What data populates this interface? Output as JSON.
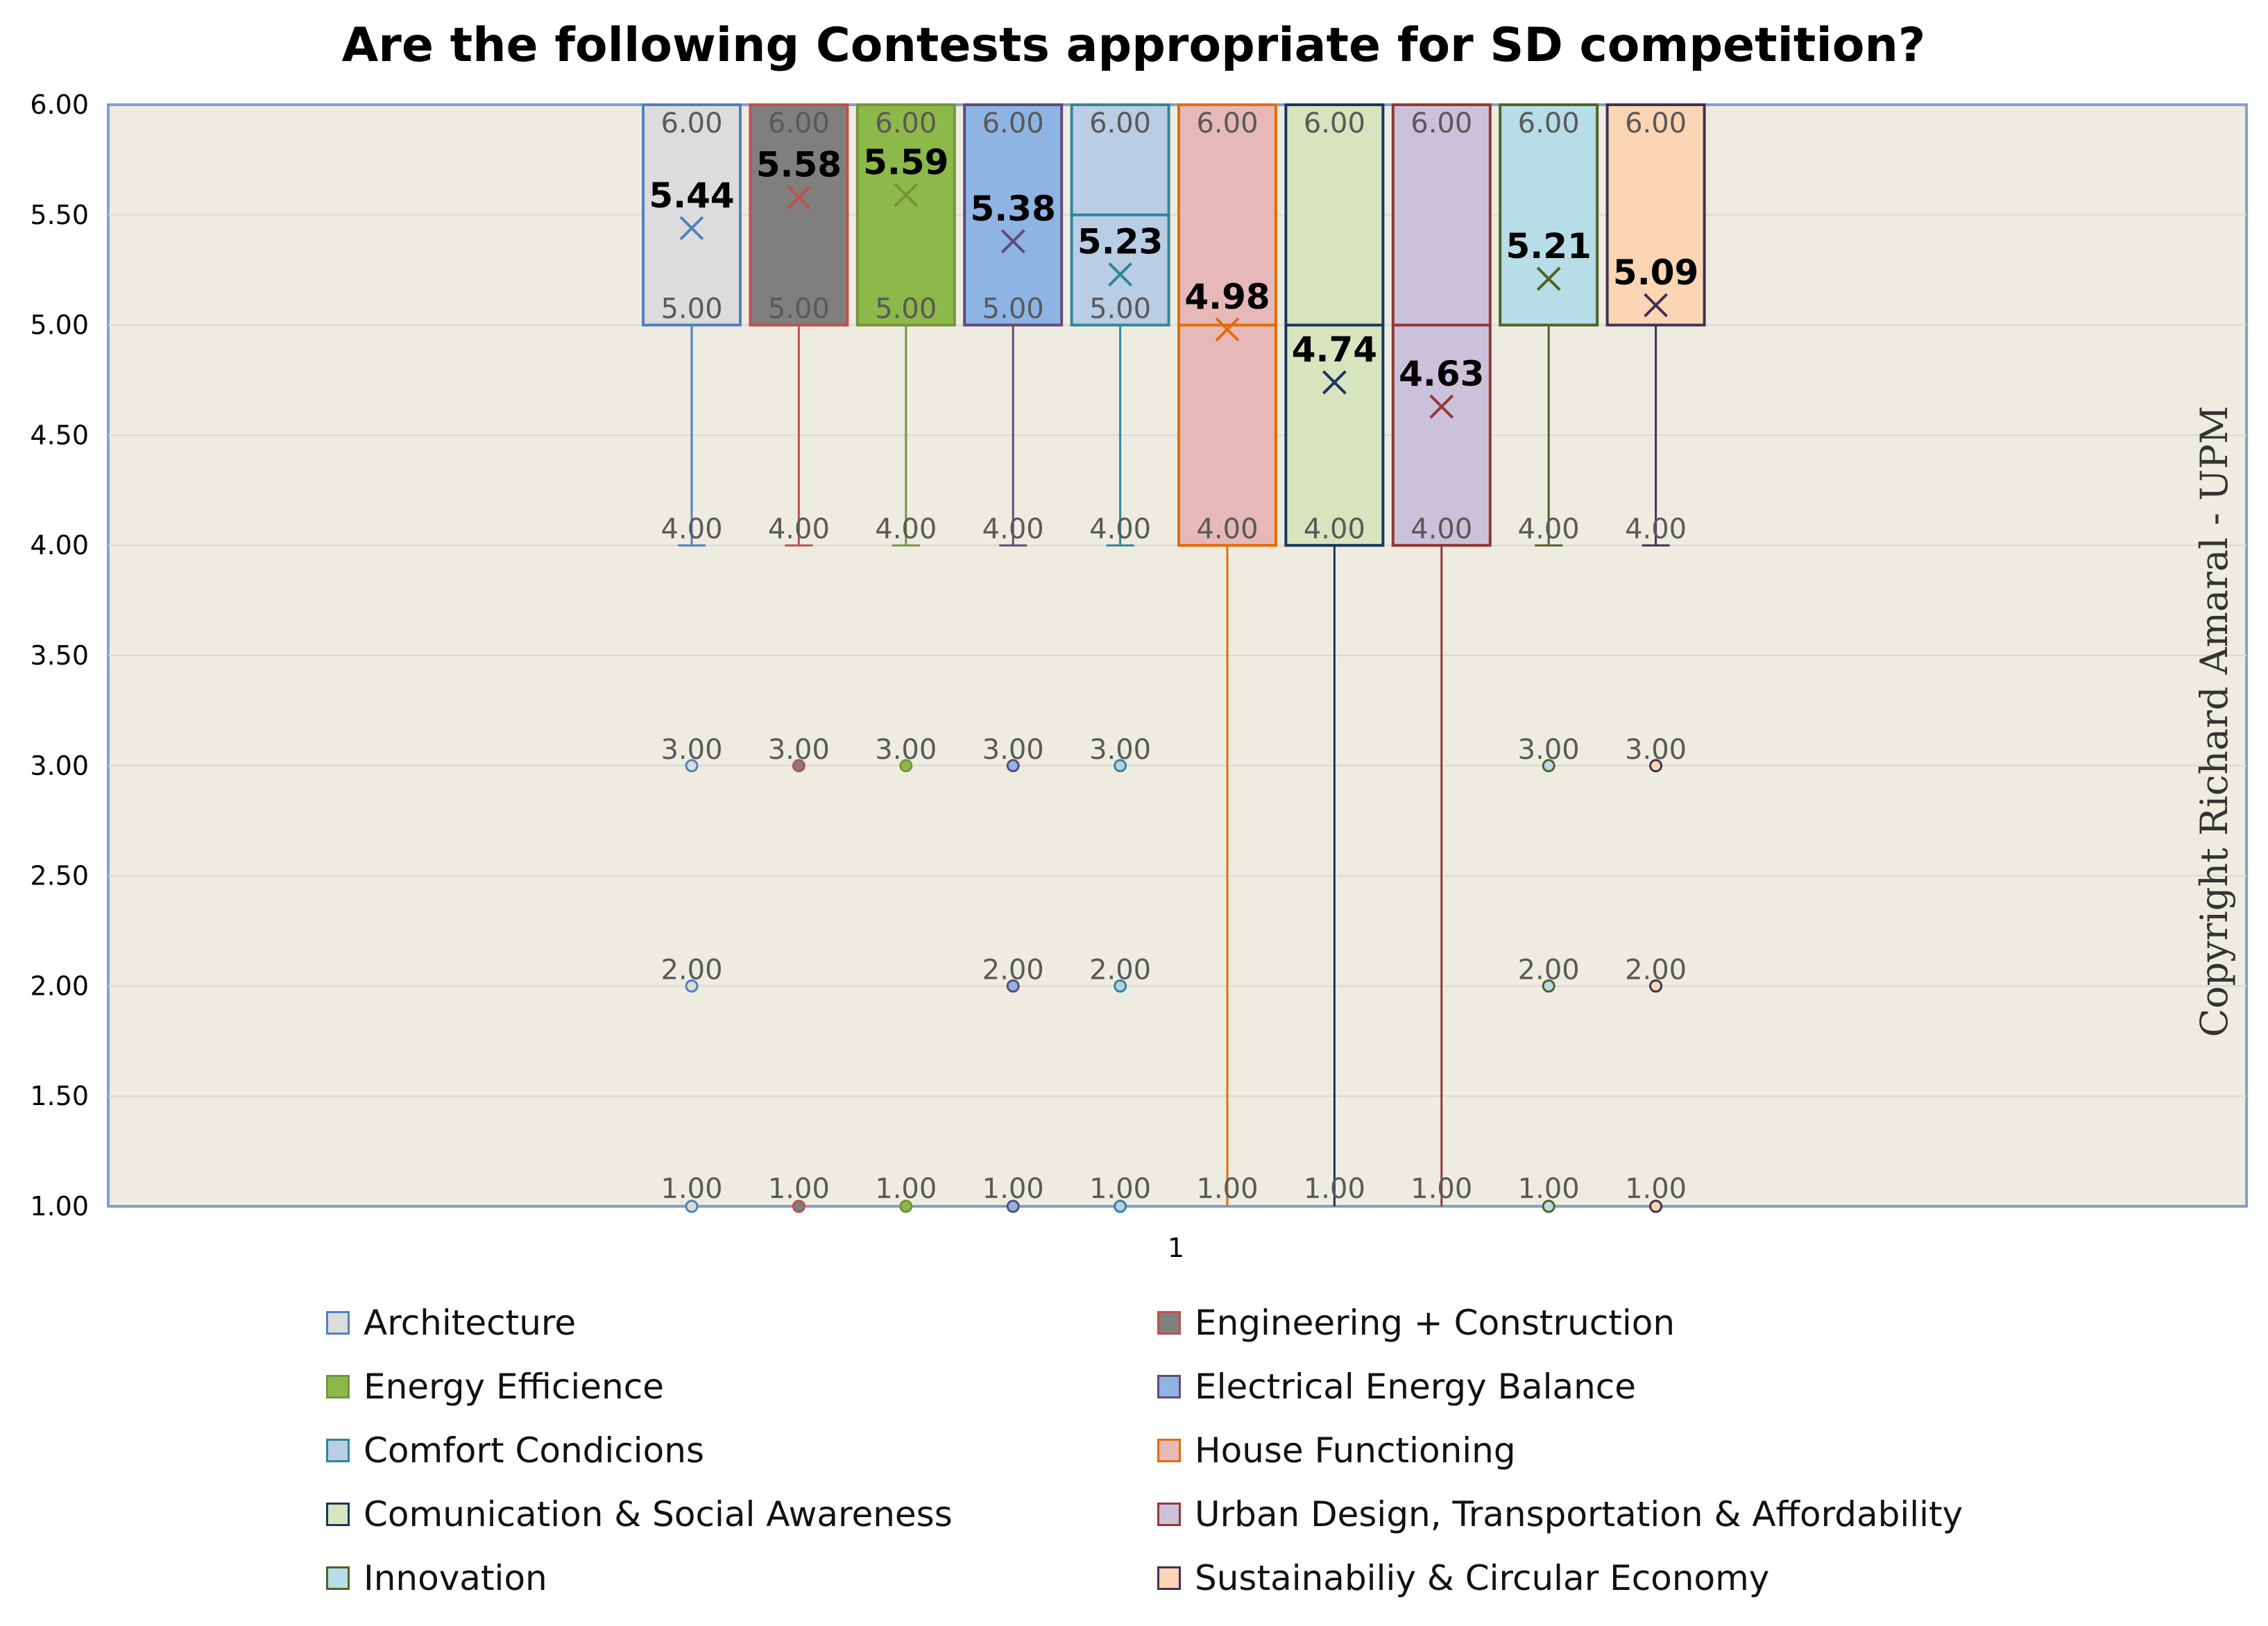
{
  "chart_data": {
    "type": "box",
    "title": "Are the following Contests appropriate for SD competition?",
    "xlabel": "",
    "ylabel": "",
    "categories": [
      "1"
    ],
    "ylim": [
      1.0,
      6.0
    ],
    "yticks": [
      "1.00",
      "1.50",
      "2.00",
      "2.50",
      "3.00",
      "3.50",
      "4.00",
      "4.50",
      "5.00",
      "5.50",
      "6.00"
    ],
    "grid": true,
    "legend_position": "bottom",
    "series": [
      {
        "name": "Architecture",
        "fill": "#dcdcdc",
        "stroke": "#4f81bd",
        "max": 6,
        "q3": 6,
        "median": 5,
        "q1": 5,
        "whisker_low": 4,
        "mean": 5.44,
        "outliers": [
          3,
          2,
          1
        ],
        "labels": [
          "6.00",
          "5.00",
          "4.00",
          "3.00",
          "2.00",
          "1.00"
        ],
        "mean_label": "5.44"
      },
      {
        "name": "Engineering + Construction",
        "fill": "#7f7f7f",
        "stroke": "#c0504d",
        "max": 6,
        "q3": 6,
        "median": 5,
        "q1": 5,
        "whisker_low": 4,
        "mean": 5.58,
        "outliers": [
          3,
          1
        ],
        "labels": [
          "6.00",
          "5.00",
          "4.00",
          "3.00",
          "1.00"
        ],
        "mean_label": "5.58"
      },
      {
        "name": "Energy Efficience",
        "fill": "#8db84a",
        "stroke": "#77933c",
        "max": 6,
        "q3": 6,
        "median": 5,
        "q1": 5,
        "whisker_low": 4,
        "mean": 5.59,
        "outliers": [
          3,
          1
        ],
        "labels": [
          "6.00",
          "5.00",
          "4.00",
          "3.00",
          "1.00"
        ],
        "mean_label": "5.59"
      },
      {
        "name": "Electrical Energy Balance",
        "fill": "#8eb4e3",
        "stroke": "#604a7b",
        "max": 6,
        "q3": 6,
        "median": 5,
        "q1": 5,
        "whisker_low": 4,
        "mean": 5.38,
        "outliers": [
          3,
          2,
          1
        ],
        "labels": [
          "6.00",
          "5.00",
          "4.00",
          "3.00",
          "2.00",
          "1.00"
        ],
        "mean_label": "5.38"
      },
      {
        "name": "Comfort Condicions",
        "fill": "#b9cde5",
        "stroke": "#31859c",
        "max": 6,
        "q3": 6,
        "median": 5.5,
        "q1": 5,
        "whisker_low": 4,
        "mean": 5.23,
        "outliers": [
          3,
          2,
          1
        ],
        "labels": [
          "6.00",
          "5.00",
          "4.00",
          "3.00",
          "2.00",
          "1.00"
        ],
        "mean_label": "5.23"
      },
      {
        "name": "House Functioning",
        "fill": "#e6b9b8",
        "stroke": "#e46c0a",
        "max": 6,
        "q3": 6,
        "median": 5,
        "q1": 4,
        "whisker_low": 1,
        "mean": 4.98,
        "outliers": [],
        "labels": [
          "6.00",
          "4.00",
          "1.00"
        ],
        "mean_label": "4.98"
      },
      {
        "name": "Comunication & Social Awareness",
        "fill": "#d7e4bd",
        "stroke": "#17375e",
        "max": 6,
        "q3": 6,
        "median": 5,
        "q1": 4,
        "whisker_low": 1,
        "mean": 4.74,
        "outliers": [],
        "labels": [
          "6.00",
          "4.00",
          "1.00"
        ],
        "mean_label": "4.74"
      },
      {
        "name": "Urban Design, Transportation & Affordability",
        "fill": "#ccc1da",
        "stroke": "#953735",
        "max": 6,
        "q3": 6,
        "median": 5,
        "q1": 4,
        "whisker_low": 1,
        "mean": 4.63,
        "outliers": [],
        "labels": [
          "6.00",
          "4.00",
          "1.00"
        ],
        "mean_label": "4.63"
      },
      {
        "name": "Innovation",
        "fill": "#b7dee8",
        "stroke": "#4f6228",
        "max": 6,
        "q3": 6,
        "median": 5,
        "q1": 5,
        "whisker_low": 4,
        "mean": 5.21,
        "outliers": [
          3,
          2,
          1
        ],
        "labels": [
          "6.00",
          "4.00",
          "3.00",
          "2.00",
          "1.00"
        ],
        "mean_label": "5.21"
      },
      {
        "name": "Sustainabiliy & Circular Economy",
        "fill": "#fcd5b5",
        "stroke": "#403152",
        "max": 6,
        "q3": 6,
        "median": 5,
        "q1": 5,
        "whisker_low": 4,
        "mean": 5.09,
        "outliers": [
          3,
          2,
          1
        ],
        "labels": [
          "6.00",
          "4.00",
          "3.00",
          "2.00",
          "1.00"
        ],
        "mean_label": "5.09"
      }
    ],
    "annotation": "Copyright Richard Amaral - UPM",
    "plot_background": "#eeece1",
    "plot_border": "#7ea1d0"
  }
}
